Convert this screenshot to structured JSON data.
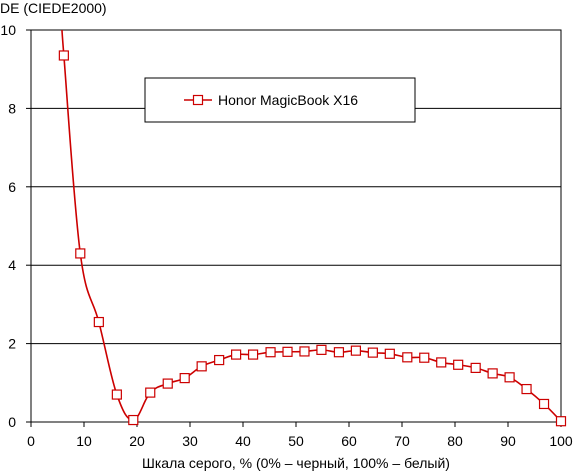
{
  "chart_data": {
    "type": "line",
    "ylabel": "DE (CIEDE2000)",
    "xlabel": "Шкала серого, % (0% – черный, 100% – белый)",
    "xlim": [
      0,
      100
    ],
    "ylim": [
      0,
      10
    ],
    "x_ticks": [
      0,
      10,
      20,
      30,
      40,
      50,
      60,
      70,
      80,
      90,
      100
    ],
    "y_ticks": [
      0,
      2,
      4,
      6,
      8,
      10
    ],
    "grid": "horizontal",
    "legend_position": "top-center",
    "series": [
      {
        "name": "Honor MagicBook X16",
        "color": "#cc0000",
        "marker": "square",
        "x": [
          6.2,
          9.3,
          12.8,
          16.2,
          19.3,
          22.5,
          25.8,
          29.0,
          32.2,
          35.5,
          38.7,
          41.9,
          45.2,
          48.4,
          51.6,
          54.8,
          58.1,
          61.3,
          64.5,
          67.7,
          71.0,
          74.2,
          77.4,
          80.6,
          83.9,
          87.1,
          90.3,
          93.5,
          96.8,
          100
        ],
        "values": [
          9.35,
          4.3,
          2.55,
          0.7,
          0.05,
          0.75,
          0.98,
          1.12,
          1.42,
          1.58,
          1.72,
          1.72,
          1.78,
          1.79,
          1.8,
          1.84,
          1.78,
          1.82,
          1.77,
          1.74,
          1.65,
          1.64,
          1.52,
          1.46,
          1.38,
          1.24,
          1.14,
          0.84,
          0.46,
          0.02
        ],
        "curve_start": {
          "x": 5.8,
          "y": 10.2
        }
      }
    ]
  }
}
